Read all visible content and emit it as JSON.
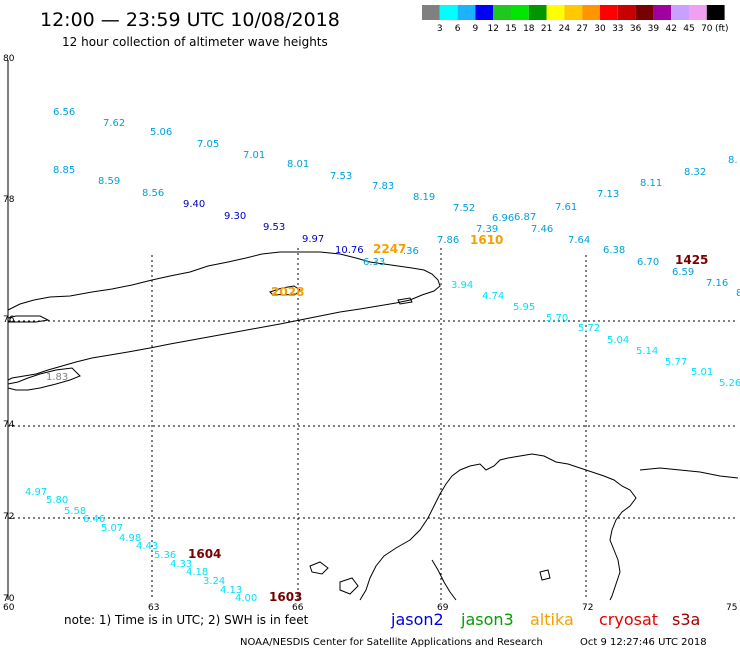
{
  "header": {
    "title": "12:00 — 23:59 UTC 10/08/2018",
    "subtitle": "12 hour collection of altimeter wave heights"
  },
  "colorbar": {
    "unit": "(ft)",
    "colors": [
      "#808080",
      "#00ffff",
      "#1bb3ff",
      "#0000ff",
      "#1ec81e",
      "#00e600",
      "#009600",
      "#ffff00",
      "#ffc800",
      "#ff9600",
      "#ff0000",
      "#c80000",
      "#780000",
      "#a000a0",
      "#c8a0ff",
      "#f0a0f0",
      "#000000"
    ],
    "labels": [
      "3",
      "6",
      "9",
      "12",
      "15",
      "18",
      "21",
      "24",
      "27",
      "30",
      "33",
      "36",
      "39",
      "42",
      "45",
      "70"
    ]
  },
  "axes": {
    "lat_labels": [
      "80",
      "78",
      "76",
      "74",
      "72",
      "70"
    ],
    "lon_labels": [
      "60",
      "63",
      "66",
      "69",
      "72",
      "75"
    ]
  },
  "colors": {
    "cyan_track": "#00a0dc",
    "bright_cyan_track": "#00e0ff",
    "blue_track": "#0000c8",
    "orange": "#f5a000",
    "maroon": "#780000",
    "gray": "#808080"
  },
  "markers": [
    {
      "text": "6.56",
      "c": "cyan"
    },
    {
      "text": "7.62",
      "c": "cyan"
    },
    {
      "text": "5.06",
      "c": "cyan"
    },
    {
      "text": "7.05",
      "c": "cyan"
    },
    {
      "text": "7.01",
      "c": "cyan"
    },
    {
      "text": "8.01",
      "c": "cyan"
    },
    {
      "text": "7.53",
      "c": "cyan"
    },
    {
      "text": "7.83",
      "c": "cyan"
    },
    {
      "text": "8.19",
      "c": "cyan"
    },
    {
      "text": "7.52",
      "c": "cyan"
    },
    {
      "text": "6.96",
      "c": "cyan"
    },
    {
      "text": "6.87",
      "c": "cyan"
    },
    {
      "text": "7.61",
      "c": "cyan"
    },
    {
      "text": "7.13",
      "c": "cyan"
    },
    {
      "text": "8.11",
      "c": "cyan"
    },
    {
      "text": "8.32",
      "c": "cyan"
    },
    {
      "text": "8.",
      "c": "cyan"
    },
    {
      "text": "8.85",
      "c": "cyan"
    },
    {
      "text": "8.59",
      "c": "cyan"
    },
    {
      "text": "8.56",
      "c": "cyan"
    },
    {
      "text": "9.40",
      "c": "blue"
    },
    {
      "text": "9.30",
      "c": "blue"
    },
    {
      "text": "9.53",
      "c": "blue"
    },
    {
      "text": "9.97",
      "c": "blue"
    },
    {
      "text": "10.76",
      "c": "blue"
    },
    {
      "text": "2247",
      "c": "orange"
    },
    {
      "text": ".36",
      "c": "cyan"
    },
    {
      "text": "6.33",
      "c": "cyan"
    },
    {
      "text": "7.86",
      "c": "cyan"
    },
    {
      "text": "7.39",
      "c": "cyan"
    },
    {
      "text": "1610",
      "c": "orange"
    },
    {
      "text": "7.46",
      "c": "cyan"
    },
    {
      "text": "7.64",
      "c": "cyan"
    },
    {
      "text": "6.38",
      "c": "cyan"
    },
    {
      "text": "6.70",
      "c": "cyan"
    },
    {
      "text": "1425",
      "c": "maroon"
    },
    {
      "text": "6.59",
      "c": "cyan"
    },
    {
      "text": "7.16",
      "c": "cyan"
    },
    {
      "text": "8",
      "c": "cyan"
    },
    {
      "text": "3.94",
      "c": "bright"
    },
    {
      "text": "4.74",
      "c": "bright"
    },
    {
      "text": "5.95",
      "c": "bright"
    },
    {
      "text": "5.70",
      "c": "bright"
    },
    {
      "text": "5.72",
      "c": "bright"
    },
    {
      "text": "5.04",
      "c": "bright"
    },
    {
      "text": "5.14",
      "c": "bright"
    },
    {
      "text": "5.77",
      "c": "bright"
    },
    {
      "text": "5.01",
      "c": "bright"
    },
    {
      "text": "5.26",
      "c": "bright"
    },
    {
      "text": "2028",
      "c": "orange"
    },
    {
      "text": "1.83",
      "c": "gray"
    },
    {
      "text": "4.97",
      "c": "bright"
    },
    {
      "text": "5.80",
      "c": "bright"
    },
    {
      "text": "5.58",
      "c": "bright"
    },
    {
      "text": "6.46",
      "c": "bright"
    },
    {
      "text": "5.07",
      "c": "bright"
    },
    {
      "text": "4.98",
      "c": "bright"
    },
    {
      "text": "4.43",
      "c": "bright"
    },
    {
      "text": "5.36",
      "c": "bright"
    },
    {
      "text": "1604",
      "c": "maroon"
    },
    {
      "text": "4.33",
      "c": "bright"
    },
    {
      "text": "4.18",
      "c": "bright"
    },
    {
      "text": "3.24",
      "c": "bright"
    },
    {
      "text": "4.13",
      "c": "bright"
    },
    {
      "text": "4.00",
      "c": "bright"
    },
    {
      "text": "1603",
      "c": "maroon"
    }
  ],
  "footer": {
    "note": "note: 1) Time is in UTC; 2) SWH is in feet",
    "credit": "NOAA/NESDIS Center for Satellite Applications and Research",
    "timestamp": "Oct  9 12:27:46 UTC 2018"
  },
  "legend": [
    {
      "label": "jason2",
      "color": "#0000e6"
    },
    {
      "label": "jason3",
      "color": "#00a000"
    },
    {
      "label": "altika",
      "color": "#f5a000"
    },
    {
      "label": "cryosat",
      "color": "#e60000"
    },
    {
      "label": "s3a",
      "color": "#a00000"
    }
  ]
}
